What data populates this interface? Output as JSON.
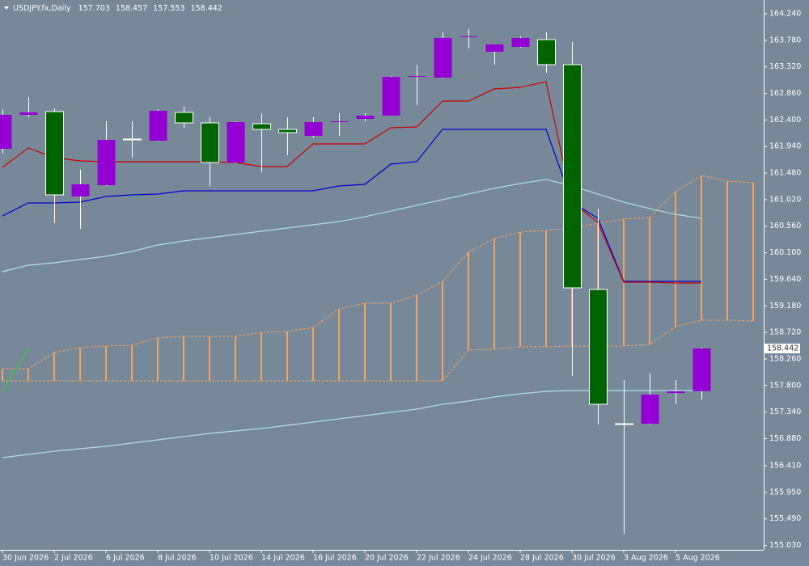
{
  "chart_data": {
    "type": "candlestick",
    "title": "USDJPY.fx,Daily",
    "background": "#778899",
    "text_color": "#ffffff",
    "bull_color": "#9400d3",
    "bear_color": "#006400",
    "bear_outline": "#ffffff",
    "wick_color": "#ffffff",
    "categories": [
      "30 Jun 2026",
      null,
      "2 Jul 2026",
      null,
      "6 Jul 2026",
      null,
      "8 Jul 2026",
      null,
      "10 Jul 2026",
      null,
      "14 Jul 2026",
      null,
      "16 Jul 2026",
      null,
      "20 Jul 2026",
      null,
      "22 Jul 2026",
      null,
      "24 Jul 2026",
      null,
      "28 Jul 2026",
      null,
      "30 Jul 2026",
      null,
      "3 Aug 2026",
      null,
      "5 Aug 2026",
      null,
      null,
      null
    ],
    "open": [
      161.901,
      162.489,
      162.545,
      161.075,
      161.271,
      162.069,
      162.041,
      162.531,
      162.349,
      161.663,
      162.335,
      162.237,
      162.125,
      162.363,
      162.419,
      162.475,
      163.147,
      163.133,
      163.848,
      163.582,
      163.666,
      163.792,
      163.358,
      159.464,
      157.139,
      157.139,
      157.671,
      157.703,
      null,
      null
    ],
    "high": [
      162.587,
      162.797,
      162.601,
      161.537,
      162.377,
      162.377,
      162.587,
      162.629,
      162.447,
      162.377,
      162.517,
      162.447,
      162.447,
      162.517,
      162.517,
      163.161,
      163.358,
      163.918,
      163.974,
      163.708,
      163.848,
      163.918,
      163.75,
      160.865,
      157.896,
      158.007,
      157.896,
      158.457,
      null,
      null
    ],
    "low": [
      161.817,
      162.447,
      160.612,
      160.514,
      161.257,
      161.747,
      162.027,
      162.265,
      161.257,
      161.649,
      161.495,
      161.789,
      162.097,
      162.125,
      162.377,
      162.475,
      162.657,
      163.119,
      163.638,
      163.358,
      163.652,
      163.218,
      157.965,
      157.125,
      155.234,
      157.125,
      157.475,
      157.553,
      null,
      null
    ],
    "close": [
      162.489,
      162.531,
      161.103,
      161.285,
      162.055,
      162.062,
      162.559,
      162.349,
      161.663,
      162.363,
      162.237,
      162.181,
      162.363,
      162.377,
      162.475,
      163.147,
      163.161,
      163.82,
      163.85,
      163.708,
      163.82,
      163.358,
      159.492,
      157.475,
      157.125,
      157.643,
      157.699,
      158.442,
      null,
      null
    ],
    "lines": [
      {
        "color": "#b0e0e6",
        "values": [
          159.772,
          159.884,
          159.926,
          159.982,
          160.038,
          160.122,
          160.234,
          160.304,
          160.36,
          160.416,
          160.472,
          160.528,
          160.584,
          160.64,
          160.724,
          160.822,
          160.921,
          161.019,
          161.117,
          161.215,
          161.299,
          161.369,
          161.257,
          161.117,
          160.977,
          160.865,
          160.766,
          160.696,
          null,
          null
        ]
      },
      {
        "color": "#b0e0e6",
        "values": [
          156.551,
          156.607,
          156.663,
          156.705,
          156.747,
          156.803,
          156.859,
          156.915,
          156.971,
          157.013,
          157.055,
          157.111,
          157.167,
          157.223,
          157.279,
          157.335,
          157.391,
          157.475,
          157.531,
          157.601,
          157.657,
          157.699,
          157.713,
          157.713,
          157.713,
          157.713,
          157.713,
          157.713,
          null,
          null
        ]
      },
      {
        "color": "#0000cd",
        "values": [
          160.738,
          160.963,
          160.963,
          160.977,
          161.075,
          161.103,
          161.117,
          161.173,
          161.173,
          161.173,
          161.173,
          161.173,
          161.173,
          161.257,
          161.285,
          161.635,
          161.677,
          162.237,
          162.237,
          162.237,
          162.237,
          162.237,
          160.977,
          160.696,
          159.604,
          159.604,
          159.604,
          159.604,
          null,
          null
        ]
      },
      {
        "color": "#cc0000",
        "values": [
          161.579,
          161.915,
          161.747,
          161.691,
          161.677,
          161.677,
          161.677,
          161.677,
          161.677,
          161.663,
          161.593,
          161.593,
          161.985,
          161.985,
          161.985,
          162.265,
          162.279,
          162.727,
          162.727,
          162.937,
          162.965,
          163.063,
          160.977,
          160.626,
          159.59,
          159.59,
          159.576,
          159.576,
          null,
          null
        ]
      },
      {
        "color": "#32cd32",
        "values": [
          157.699,
          158.442,
          null,
          null,
          null,
          null,
          null,
          null,
          null,
          null,
          null,
          null,
          null,
          null,
          null,
          null,
          null,
          null,
          null,
          null,
          null,
          null,
          null,
          null,
          null,
          null,
          null,
          null,
          null,
          null
        ]
      }
    ],
    "cloud": {
      "color": "#f4a460",
      "upper": [
        158.091,
        158.091,
        158.372,
        158.456,
        158.484,
        158.498,
        158.624,
        158.652,
        158.652,
        158.652,
        158.722,
        158.736,
        158.806,
        159.128,
        159.226,
        159.226,
        159.366,
        159.604,
        160.108,
        160.346,
        160.458,
        160.486,
        160.528,
        160.612,
        160.682,
        160.71,
        161.159,
        161.439,
        161.341,
        161.313
      ],
      "lower": [
        157.882,
        157.882,
        157.882,
        157.882,
        157.882,
        157.882,
        157.882,
        157.882,
        157.882,
        157.882,
        157.882,
        157.882,
        157.882,
        157.882,
        157.882,
        157.882,
        157.882,
        157.882,
        158.414,
        158.428,
        158.47,
        158.47,
        158.484,
        158.484,
        158.484,
        158.512,
        158.82,
        158.932,
        158.932,
        158.918
      ]
    },
    "ylim": [
      154.954,
      164.478
    ],
    "yticks": [
      {
        "value": 164.24,
        "label": "164.240"
      },
      {
        "value": 163.78,
        "label": "163.780"
      },
      {
        "value": 163.32,
        "label": "163.320"
      },
      {
        "value": 162.86,
        "label": "162.860"
      },
      {
        "value": 162.4,
        "label": "162.400"
      },
      {
        "value": 161.94,
        "label": "161.940"
      },
      {
        "value": 161.48,
        "label": "161.480"
      },
      {
        "value": 161.02,
        "label": "161.020"
      },
      {
        "value": 160.56,
        "label": "160.560"
      },
      {
        "value": 160.1,
        "label": "160.100"
      },
      {
        "value": 159.64,
        "label": "159.640"
      },
      {
        "value": 159.18,
        "label": "159.180"
      },
      {
        "value": 158.72,
        "label": "158.720"
      },
      {
        "value": 158.26,
        "label": "158.260"
      },
      {
        "value": 157.8,
        "label": "157.800"
      },
      {
        "value": 157.34,
        "label": "157.340"
      },
      {
        "value": 156.88,
        "label": "156.880"
      },
      {
        "value": 156.41,
        "label": "156.410"
      },
      {
        "value": 155.95,
        "label": "155.950"
      },
      {
        "value": 155.49,
        "label": "155.490"
      },
      {
        "value": 155.03,
        "label": "155.030"
      }
    ]
  }
}
